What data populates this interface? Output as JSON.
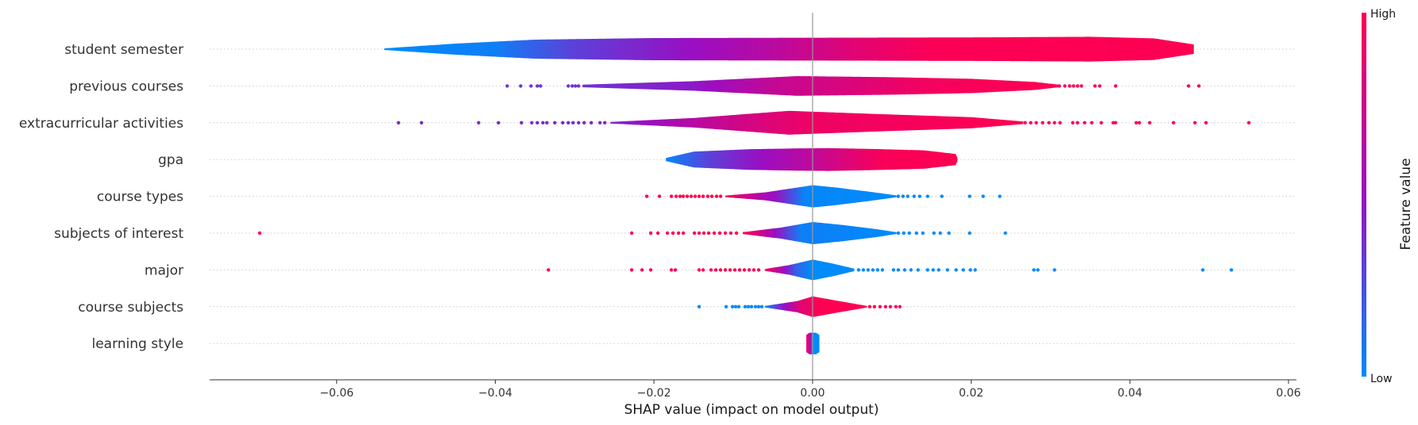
{
  "chart_data": {
    "type": "violin",
    "xlabel": "SHAP value (impact on model output)",
    "xlim": [
      -0.076,
      0.061
    ],
    "x_ticks": [
      -0.06,
      -0.04,
      -0.02,
      0.0,
      0.02,
      0.04,
      0.06
    ],
    "x_tick_labels": [
      "−0.06",
      "−0.04",
      "−0.02",
      "0.00",
      "0.02",
      "0.04",
      "0.06"
    ],
    "colorbar": {
      "label": "Feature value",
      "high_label": "High",
      "low_label": "Low"
    },
    "colors": {
      "low": "#008bfb",
      "high": "#ff0052",
      "mid": "#9b0ec2",
      "grid": "#cccccc",
      "zero_line": "#999999"
    },
    "features": [
      {
        "name": "student semester",
        "extent": [
          -0.054,
          0.048
        ],
        "width_profile": [
          [
            -0.054,
            0.05
          ],
          [
            -0.045,
            0.35
          ],
          [
            -0.035,
            0.6
          ],
          [
            -0.02,
            0.7
          ],
          [
            0.0,
            0.72
          ],
          [
            0.02,
            0.74
          ],
          [
            0.035,
            0.78
          ],
          [
            0.043,
            0.68
          ],
          [
            0.048,
            0.3
          ]
        ],
        "color_profile": [
          [
            -0.054,
            0.0
          ],
          [
            -0.04,
            0.05
          ],
          [
            -0.03,
            0.3
          ],
          [
            -0.015,
            0.5
          ],
          [
            -0.005,
            0.65
          ],
          [
            0.005,
            0.85
          ],
          [
            0.015,
            0.98
          ],
          [
            0.048,
            1.0
          ]
        ],
        "outliers_low": [],
        "outliers_high": []
      },
      {
        "name": "previous courses",
        "extent": [
          -0.029,
          0.031
        ],
        "width_profile": [
          [
            -0.029,
            0.08
          ],
          [
            -0.015,
            0.3
          ],
          [
            -0.002,
            0.62
          ],
          [
            0.01,
            0.55
          ],
          [
            0.02,
            0.45
          ],
          [
            0.028,
            0.25
          ],
          [
            0.031,
            0.08
          ]
        ],
        "color_profile": [
          [
            -0.029,
            0.35
          ],
          [
            -0.015,
            0.45
          ],
          [
            -0.005,
            0.7
          ],
          [
            0.005,
            0.82
          ],
          [
            0.015,
            0.95
          ],
          [
            0.031,
            1.0
          ]
        ],
        "outliers_low": [
          -0.0385,
          -0.0368,
          -0.0355,
          -0.0347,
          -0.0343,
          -0.0308,
          -0.0303,
          -0.0299,
          -0.0295
        ],
        "outliers_high": [
          0.0311,
          0.0318,
          0.0324,
          0.0329,
          0.0334,
          0.0339,
          0.0356,
          0.0362,
          0.0382,
          0.0474,
          0.0487
        ]
      },
      {
        "name": "extracurricular activities",
        "extent": [
          -0.0255,
          0.0265
        ],
        "width_profile": [
          [
            -0.0255,
            0.05
          ],
          [
            -0.015,
            0.3
          ],
          [
            -0.003,
            0.75
          ],
          [
            0.008,
            0.55
          ],
          [
            0.02,
            0.35
          ],
          [
            0.0265,
            0.08
          ]
        ],
        "color_profile": [
          [
            -0.0255,
            0.4
          ],
          [
            -0.01,
            0.75
          ],
          [
            0.0,
            0.92
          ],
          [
            0.0265,
            1.0
          ]
        ],
        "outliers_low": [
          -0.0522,
          -0.0493,
          -0.0421,
          -0.0396,
          -0.0367,
          -0.0354,
          -0.0347,
          -0.034,
          -0.0335,
          -0.0325,
          -0.0315,
          -0.0308,
          -0.0302,
          -0.0295,
          -0.0288,
          -0.0279,
          -0.0268,
          -0.0262
        ],
        "outliers_high": [
          0.0268,
          0.0275,
          0.0282,
          0.029,
          0.0298,
          0.0305,
          0.0312,
          0.0328,
          0.0334,
          0.0343,
          0.0352,
          0.0364,
          0.0379,
          0.0382,
          0.0408,
          0.0412,
          0.0425,
          0.0455,
          0.0482,
          0.0496,
          0.055
        ]
      },
      {
        "name": "gpa",
        "extent": [
          -0.0185,
          0.0182
        ],
        "width_profile": [
          [
            -0.0185,
            0.1
          ],
          [
            -0.015,
            0.5
          ],
          [
            -0.008,
            0.65
          ],
          [
            -0.002,
            0.7
          ],
          [
            0.002,
            0.72
          ],
          [
            0.008,
            0.66
          ],
          [
            0.014,
            0.58
          ],
          [
            0.018,
            0.35
          ],
          [
            0.0182,
            0.12
          ]
        ],
        "color_profile": [
          [
            -0.0185,
            0.02
          ],
          [
            -0.013,
            0.3
          ],
          [
            -0.007,
            0.48
          ],
          [
            -0.002,
            0.62
          ],
          [
            0.004,
            0.82
          ],
          [
            0.009,
            0.97
          ],
          [
            0.0182,
            1.0
          ]
        ],
        "outliers_low": [],
        "outliers_high": []
      },
      {
        "name": "course types",
        "extent": [
          -0.011,
          0.0105
        ],
        "width_profile": [
          [
            -0.011,
            0.05
          ],
          [
            -0.006,
            0.25
          ],
          [
            -0.002,
            0.55
          ],
          [
            0.0,
            0.7
          ],
          [
            0.003,
            0.55
          ],
          [
            0.007,
            0.3
          ],
          [
            0.0105,
            0.06
          ]
        ],
        "color_profile": [
          [
            -0.011,
            1.0
          ],
          [
            -0.008,
            0.72
          ],
          [
            -0.004,
            0.42
          ],
          [
            -0.001,
            0.02
          ],
          [
            0.0105,
            0.0
          ]
        ],
        "outliers_low": [
          -0.0209,
          -0.0193,
          -0.0178,
          -0.0172,
          -0.0167,
          -0.0163,
          -0.0158,
          -0.0153,
          -0.0148,
          -0.0143,
          -0.0138,
          -0.0132,
          -0.0127,
          -0.0121,
          -0.0116
        ],
        "outliers_high": [
          0.0108,
          0.0114,
          0.012,
          0.0128,
          0.0135,
          0.0145,
          0.0163,
          0.0198,
          0.0215,
          0.0236
        ]
      },
      {
        "name": "subjects of interest",
        "extent": [
          -0.0088,
          0.0105
        ],
        "width_profile": [
          [
            -0.0088,
            0.06
          ],
          [
            -0.004,
            0.35
          ],
          [
            0.0,
            0.7
          ],
          [
            0.004,
            0.5
          ],
          [
            0.008,
            0.25
          ],
          [
            0.0105,
            0.06
          ]
        ],
        "color_profile": [
          [
            -0.0088,
            1.0
          ],
          [
            -0.0065,
            0.75
          ],
          [
            -0.004,
            0.4
          ],
          [
            -0.0015,
            0.05
          ],
          [
            0.0105,
            0.0
          ]
        ],
        "outliers_low": [
          -0.0697,
          -0.0228,
          -0.0204,
          -0.0195,
          -0.0183,
          -0.0176,
          -0.0169,
          -0.0163,
          -0.0149,
          -0.0143,
          -0.0137,
          -0.0131,
          -0.0124,
          -0.0117,
          -0.011,
          -0.0103,
          -0.0096
        ],
        "outliers_high": [
          0.0108,
          0.0115,
          0.0122,
          0.0131,
          0.0139,
          0.0153,
          0.0161,
          0.0172,
          0.0198,
          0.0243
        ]
      },
      {
        "name": "major",
        "extent": [
          -0.006,
          0.0052
        ],
        "width_profile": [
          [
            -0.006,
            0.06
          ],
          [
            -0.003,
            0.3
          ],
          [
            0.0,
            0.65
          ],
          [
            0.0025,
            0.4
          ],
          [
            0.0052,
            0.08
          ]
        ],
        "color_profile": [
          [
            -0.006,
            1.0
          ],
          [
            -0.004,
            0.6
          ],
          [
            -0.002,
            0.15
          ],
          [
            0.0,
            0.0
          ],
          [
            0.0052,
            0.0
          ]
        ],
        "outliers_low": [
          -0.0333,
          -0.0228,
          -0.0215,
          -0.0204,
          -0.0178,
          -0.0173,
          -0.0143,
          -0.0138,
          -0.0128,
          -0.0122,
          -0.0116,
          -0.011,
          -0.0104,
          -0.0098,
          -0.0092,
          -0.0086,
          -0.008,
          -0.0074,
          -0.0068
        ],
        "outliers_high": [
          0.0058,
          0.0064,
          0.007,
          0.0076,
          0.0082,
          0.0088,
          0.0102,
          0.0108,
          0.0116,
          0.0124,
          0.0133,
          0.0145,
          0.0152,
          0.0159,
          0.017,
          0.0181,
          0.019,
          0.0199,
          0.0205,
          0.0279,
          0.0284,
          0.0305,
          0.0492,
          0.0528
        ]
      },
      {
        "name": "course subjects",
        "extent": [
          -0.006,
          0.0068
        ],
        "width_profile": [
          [
            -0.006,
            0.05
          ],
          [
            -0.002,
            0.35
          ],
          [
            0.0,
            0.65
          ],
          [
            0.003,
            0.38
          ],
          [
            0.0068,
            0.05
          ]
        ],
        "color_profile": [
          [
            -0.006,
            0.0
          ],
          [
            -0.004,
            0.4
          ],
          [
            -0.0015,
            0.85
          ],
          [
            0.001,
            1.0
          ],
          [
            0.0068,
            1.0
          ]
        ],
        "outliers_low": [
          -0.0143,
          -0.0109,
          -0.0101,
          -0.0097,
          -0.0093,
          -0.0085,
          -0.0081,
          -0.0077,
          -0.0072,
          -0.0068,
          -0.0064
        ],
        "outliers_high": [
          0.0072,
          0.0078,
          0.0085,
          0.0092,
          0.0098,
          0.0105,
          0.011
        ]
      },
      {
        "name": "learning style",
        "extent": [
          -0.0008,
          0.0008
        ],
        "width_profile": [
          [
            -0.0008,
            0.55
          ],
          [
            -0.0004,
            0.68
          ],
          [
            0.0004,
            0.68
          ],
          [
            0.0008,
            0.55
          ]
        ],
        "color_profile": [
          [
            -0.0008,
            1.0
          ],
          [
            -0.0003,
            0.6
          ],
          [
            0.0,
            0.0
          ],
          [
            0.0008,
            0.0
          ]
        ],
        "outliers_low": [],
        "outliers_high": []
      }
    ]
  }
}
